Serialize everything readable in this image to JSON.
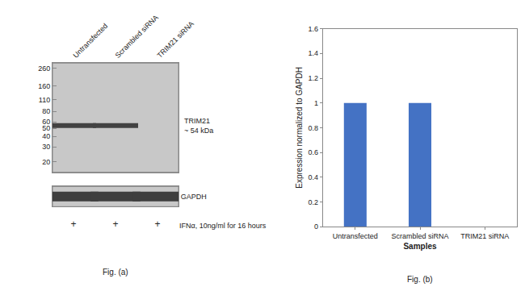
{
  "chart_data": [
    {
      "type": "blot",
      "title": "Fig. (a)",
      "categories": [
        "Untransfected",
        "Scrambled siRNA",
        "TRIM21 siRNA"
      ],
      "log": "y",
      "ylim": [
        15,
        300
      ],
      "yticks": [
        260,
        160,
        110,
        80,
        60,
        50,
        40,
        30,
        20
      ],
      "grid": false,
      "color": "#303030",
      "series": [
        {
          "name": "TRIM21\n~ 54 kDa",
          "values": [
            54,
            54,
            null
          ]
        }
      ],
      "loading_control": {
        "name": "GAPDH",
        "lanes": [
          true,
          true,
          true
        ]
      },
      "treatment": {
        "name": "IFNα, 10ng/ml for 16 hours",
        "labels": [
          "+",
          "+",
          "+"
        ]
      }
    },
    {
      "type": "bar",
      "title": "Fig. (b)",
      "categories": [
        "Untransfected",
        "Scrambled siRNA",
        "TRIM21 siRNA"
      ],
      "values": [
        1.0,
        1.0,
        0.0
      ],
      "color": "#4472c4",
      "ylim": [
        0,
        1.6
      ],
      "yticks": [
        0,
        0.2,
        0.4,
        0.6,
        0.8,
        1,
        1.2,
        1.4,
        1.6
      ],
      "xlabel": "Samples",
      "ylabel": "Expression normalized to GAPDH",
      "grid": false
    }
  ]
}
